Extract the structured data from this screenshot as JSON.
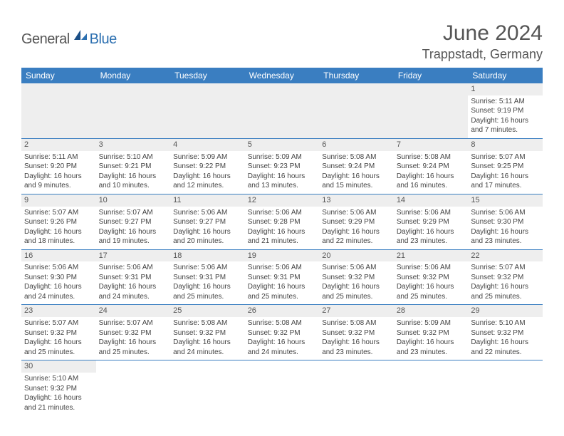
{
  "logo": {
    "text1": "General",
    "text2": "Blue"
  },
  "title": "June 2024",
  "location": "Trappstadt, Germany",
  "colors": {
    "header_bg": "#3a7ec1",
    "header_text": "#ffffff",
    "stripe": "#eeeeee",
    "rule": "#3a7ec1",
    "text": "#444444"
  },
  "weekdays": [
    "Sunday",
    "Monday",
    "Tuesday",
    "Wednesday",
    "Thursday",
    "Friday",
    "Saturday"
  ],
  "weeks": [
    [
      null,
      null,
      null,
      null,
      null,
      null,
      {
        "n": "1",
        "sunrise": "5:11 AM",
        "sunset": "9:19 PM",
        "daylight": "16 hours and 7 minutes."
      }
    ],
    [
      {
        "n": "2",
        "sunrise": "5:11 AM",
        "sunset": "9:20 PM",
        "daylight": "16 hours and 9 minutes."
      },
      {
        "n": "3",
        "sunrise": "5:10 AM",
        "sunset": "9:21 PM",
        "daylight": "16 hours and 10 minutes."
      },
      {
        "n": "4",
        "sunrise": "5:09 AM",
        "sunset": "9:22 PM",
        "daylight": "16 hours and 12 minutes."
      },
      {
        "n": "5",
        "sunrise": "5:09 AM",
        "sunset": "9:23 PM",
        "daylight": "16 hours and 13 minutes."
      },
      {
        "n": "6",
        "sunrise": "5:08 AM",
        "sunset": "9:24 PM",
        "daylight": "16 hours and 15 minutes."
      },
      {
        "n": "7",
        "sunrise": "5:08 AM",
        "sunset": "9:24 PM",
        "daylight": "16 hours and 16 minutes."
      },
      {
        "n": "8",
        "sunrise": "5:07 AM",
        "sunset": "9:25 PM",
        "daylight": "16 hours and 17 minutes."
      }
    ],
    [
      {
        "n": "9",
        "sunrise": "5:07 AM",
        "sunset": "9:26 PM",
        "daylight": "16 hours and 18 minutes."
      },
      {
        "n": "10",
        "sunrise": "5:07 AM",
        "sunset": "9:27 PM",
        "daylight": "16 hours and 19 minutes."
      },
      {
        "n": "11",
        "sunrise": "5:06 AM",
        "sunset": "9:27 PM",
        "daylight": "16 hours and 20 minutes."
      },
      {
        "n": "12",
        "sunrise": "5:06 AM",
        "sunset": "9:28 PM",
        "daylight": "16 hours and 21 minutes."
      },
      {
        "n": "13",
        "sunrise": "5:06 AM",
        "sunset": "9:29 PM",
        "daylight": "16 hours and 22 minutes."
      },
      {
        "n": "14",
        "sunrise": "5:06 AM",
        "sunset": "9:29 PM",
        "daylight": "16 hours and 23 minutes."
      },
      {
        "n": "15",
        "sunrise": "5:06 AM",
        "sunset": "9:30 PM",
        "daylight": "16 hours and 23 minutes."
      }
    ],
    [
      {
        "n": "16",
        "sunrise": "5:06 AM",
        "sunset": "9:30 PM",
        "daylight": "16 hours and 24 minutes."
      },
      {
        "n": "17",
        "sunrise": "5:06 AM",
        "sunset": "9:31 PM",
        "daylight": "16 hours and 24 minutes."
      },
      {
        "n": "18",
        "sunrise": "5:06 AM",
        "sunset": "9:31 PM",
        "daylight": "16 hours and 25 minutes."
      },
      {
        "n": "19",
        "sunrise": "5:06 AM",
        "sunset": "9:31 PM",
        "daylight": "16 hours and 25 minutes."
      },
      {
        "n": "20",
        "sunrise": "5:06 AM",
        "sunset": "9:32 PM",
        "daylight": "16 hours and 25 minutes."
      },
      {
        "n": "21",
        "sunrise": "5:06 AM",
        "sunset": "9:32 PM",
        "daylight": "16 hours and 25 minutes."
      },
      {
        "n": "22",
        "sunrise": "5:07 AM",
        "sunset": "9:32 PM",
        "daylight": "16 hours and 25 minutes."
      }
    ],
    [
      {
        "n": "23",
        "sunrise": "5:07 AM",
        "sunset": "9:32 PM",
        "daylight": "16 hours and 25 minutes."
      },
      {
        "n": "24",
        "sunrise": "5:07 AM",
        "sunset": "9:32 PM",
        "daylight": "16 hours and 25 minutes."
      },
      {
        "n": "25",
        "sunrise": "5:08 AM",
        "sunset": "9:32 PM",
        "daylight": "16 hours and 24 minutes."
      },
      {
        "n": "26",
        "sunrise": "5:08 AM",
        "sunset": "9:32 PM",
        "daylight": "16 hours and 24 minutes."
      },
      {
        "n": "27",
        "sunrise": "5:08 AM",
        "sunset": "9:32 PM",
        "daylight": "16 hours and 23 minutes."
      },
      {
        "n": "28",
        "sunrise": "5:09 AM",
        "sunset": "9:32 PM",
        "daylight": "16 hours and 23 minutes."
      },
      {
        "n": "29",
        "sunrise": "5:10 AM",
        "sunset": "9:32 PM",
        "daylight": "16 hours and 22 minutes."
      }
    ],
    [
      {
        "n": "30",
        "sunrise": "5:10 AM",
        "sunset": "9:32 PM",
        "daylight": "16 hours and 21 minutes."
      },
      null,
      null,
      null,
      null,
      null,
      null
    ]
  ],
  "labels": {
    "sunrise": "Sunrise: ",
    "sunset": "Sunset: ",
    "daylight": "Daylight: "
  }
}
